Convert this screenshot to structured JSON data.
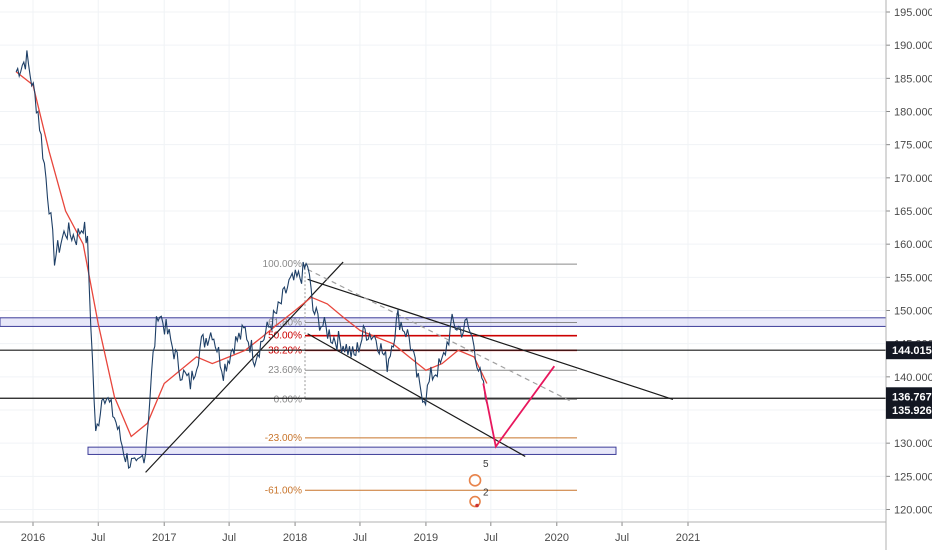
{
  "chart_data": {
    "type": "line",
    "title": "",
    "xlabel": "",
    "ylabel": "",
    "ylim": [
      118,
      197
    ],
    "y_ticks": [
      "195.000",
      "190.000",
      "185.000",
      "180.000",
      "175.000",
      "170.000",
      "165.000",
      "160.000",
      "155.000",
      "150.000",
      "145.000",
      "140.000",
      "135.000",
      "130.000",
      "125.000",
      "120.000"
    ],
    "x_ticks": [
      "2016",
      "Jul",
      "2017",
      "Jul",
      "2018",
      "Jul",
      "2019",
      "Jul",
      "2020",
      "Jul",
      "2021"
    ],
    "x_tick_dates": [
      "2016-01-01",
      "2016-07-01",
      "2017-01-01",
      "2017-07-01",
      "2018-01-01",
      "2018-07-01",
      "2019-01-01",
      "2019-07-01",
      "2020-01-01",
      "2020-07-01",
      "2021-01-01"
    ],
    "series": [
      {
        "values_type": "price",
        "color": "#1e3f66",
        "x": [
          "2015-11-15",
          "2015-12-15",
          "2016-01-15",
          "2016-02-15",
          "2016-03-01",
          "2016-04-01",
          "2016-05-01",
          "2016-05-20",
          "2016-06-01",
          "2016-06-24",
          "2016-07-15",
          "2016-08-15",
          "2016-09-15",
          "2016-10-15",
          "2016-11-10",
          "2016-12-01",
          "2016-12-15",
          "2017-01-15",
          "2017-02-15",
          "2017-03-15",
          "2017-04-15",
          "2017-05-15",
          "2017-06-15",
          "2017-07-15",
          "2017-08-15",
          "2017-09-10",
          "2017-10-15",
          "2017-11-15",
          "2017-12-15",
          "2018-01-15",
          "2018-02-05",
          "2018-02-20",
          "2018-03-15",
          "2018-04-15",
          "2018-05-15",
          "2018-06-15",
          "2018-07-15",
          "2018-08-15",
          "2018-09-15",
          "2018-10-15",
          "2018-11-15",
          "2018-12-15",
          "2018-12-31",
          "2019-01-15",
          "2019-02-15",
          "2019-03-15",
          "2019-04-15",
          "2019-04-25",
          "2019-05-15",
          "2019-06-01",
          "2019-06-20"
        ],
        "values": [
          186,
          188,
          180,
          166,
          158,
          162,
          161,
          163,
          160,
          131,
          138,
          134,
          128,
          126,
          129,
          143,
          150,
          146,
          141,
          139,
          145,
          147,
          141,
          145,
          147,
          143,
          147,
          150,
          154,
          155,
          157,
          150,
          148,
          146,
          145,
          143,
          147,
          146,
          142,
          149,
          146,
          138,
          137,
          140,
          142,
          148,
          147,
          148,
          145,
          140,
          136
        ]
      },
      {
        "values_type": "moving average",
        "color": "#e8463c",
        "x": [
          "2015-11-15",
          "2016-01-01",
          "2016-02-15",
          "2016-04-01",
          "2016-05-20",
          "2016-07-01",
          "2016-08-15",
          "2016-10-01",
          "2016-11-15",
          "2017-01-01",
          "2017-02-15",
          "2017-04-01",
          "2017-05-15",
          "2017-07-01",
          "2017-08-15",
          "2017-10-01",
          "2017-11-15",
          "2018-01-01",
          "2018-02-15",
          "2018-04-01",
          "2018-05-15",
          "2018-07-01",
          "2018-08-15",
          "2018-10-01",
          "2018-11-15",
          "2019-01-01",
          "2019-02-15",
          "2019-04-01",
          "2019-05-15",
          "2019-06-20"
        ],
        "values": [
          186,
          184,
          174,
          165,
          160,
          148,
          137,
          131,
          133,
          139,
          141,
          143,
          142,
          143,
          144,
          146,
          148,
          150,
          152,
          151,
          149,
          147,
          146,
          145,
          143,
          141,
          142,
          144,
          143,
          139
        ]
      }
    ],
    "fib_levels": [
      {
        "label": "100.00%",
        "price": 157.0,
        "color": "#8a8a8a"
      },
      {
        "label": "61.80%",
        "price": 148.2,
        "color": "#8a8a8a"
      },
      {
        "label": "50.00%",
        "price": 146.2,
        "color": "#cc0000"
      },
      {
        "label": "38.20%",
        "price": 144.0,
        "color": "#cc0000"
      },
      {
        "label": "23.60%",
        "price": 141.0,
        "color": "#8a8a8a"
      },
      {
        "label": "0.00%",
        "price": 136.6,
        "color": "#8a8a8a"
      },
      {
        "label": "-23.00%",
        "price": 130.8,
        "color": "#c8742a"
      },
      {
        "label": "-61.00%",
        "price": 122.9,
        "color": "#c8742a"
      }
    ],
    "price_tags": [
      "144.015",
      "136.767",
      "135.926"
    ],
    "wave_labels": [
      "5",
      "2"
    ],
    "colors": {
      "price": "#1e3f66",
      "ma": "#e8463c",
      "projection": "#e8175d",
      "zone": "#3d3d99",
      "trendline": "#1a1a1a"
    }
  }
}
